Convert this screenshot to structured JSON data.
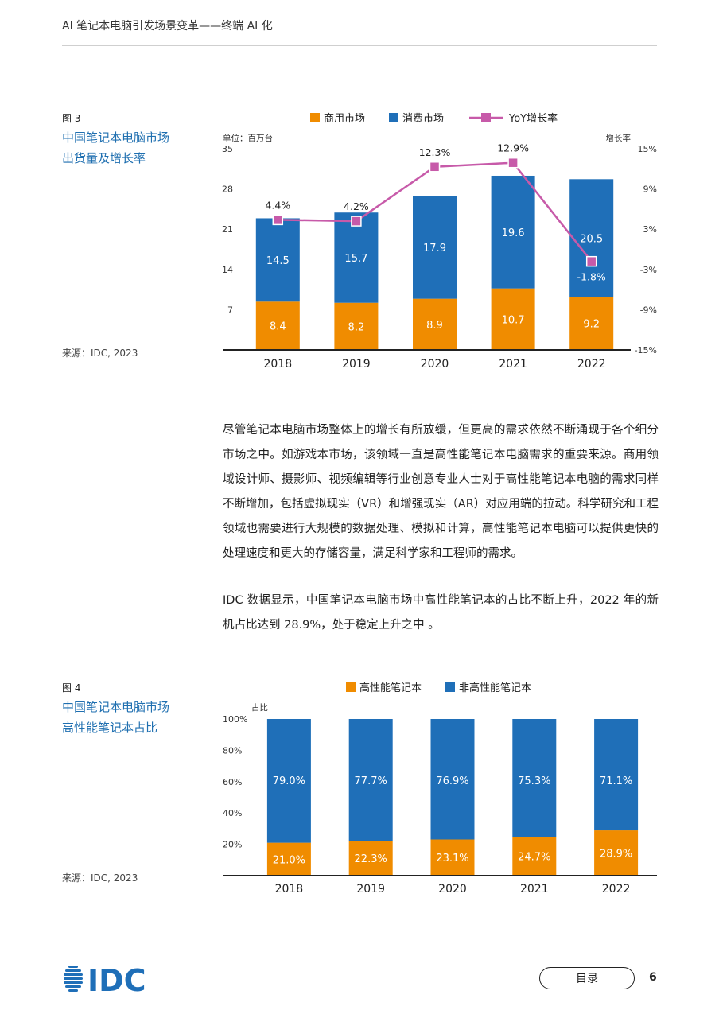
{
  "header": {
    "title": "AI 笔记本电脑引发场景变革——终端 AI 化"
  },
  "figure3": {
    "label": "图 3",
    "title_line1": "中国笔记本电脑市场",
    "title_line2": "出货量及增长率",
    "source": "来源：IDC, 2023",
    "unit_left": "单位：百万台",
    "unit_right": "增长率"
  },
  "figure4": {
    "label": "图 4",
    "title_line1": "中国笔记本电脑市场",
    "title_line2": "高性能笔记本占比",
    "source": "来源：IDC, 2023",
    "unit_left": "占比"
  },
  "body": {
    "paragraph1": "尽管笔记本电脑市场整体上的增长有所放缓，但更高的需求依然不断涌现于各个细分市场之中。如游戏本市场，该领域一直是高性能笔记本电脑需求的重要来源。商用领域设计师、摄影师、视频编辑等行业创意专业人士对于高性能笔记本电脑的需求同样不断增加，包括虚拟现实（VR）和增强现实（AR）对应用端的拉动。科学研究和工程领域也需要进行大规模的数据处理、模拟和计算，高性能笔记本电脑可以提供更快的处理速度和更大的存储容量，满足科学家和工程师的需求。",
    "paragraph2": "IDC 数据显示，中国笔记本电脑市场中高性能笔记本的占比不断上升，2022 年的新机占比达到 28.9%，处于稳定上升之中 。"
  },
  "footer": {
    "logo_text": "IDC",
    "toc_label": "目录",
    "page_number": "6"
  },
  "colors": {
    "orange": "#f08c00",
    "blue": "#1f6fb8",
    "pink": "#c75aa9",
    "title_blue": "#1f6fb0"
  },
  "chart_data": [
    {
      "type": "bar",
      "stacked": true,
      "categories": [
        "2018",
        "2019",
        "2020",
        "2021",
        "2022"
      ],
      "series": [
        {
          "name": "商用市场",
          "values": [
            8.4,
            8.2,
            8.9,
            10.7,
            9.2
          ],
          "labels": [
            "8.4",
            "8.2",
            "8.9",
            "10.7",
            "9.2"
          ],
          "color": "#f08c00"
        },
        {
          "name": "消费市场",
          "values": [
            14.5,
            15.7,
            17.9,
            19.6,
            20.5
          ],
          "labels": [
            "14.5",
            "15.7",
            "17.9",
            "19.6",
            "20.5"
          ],
          "color": "#1f6fb8"
        }
      ],
      "line_series": {
        "name": "YoY增长率",
        "values": [
          4.4,
          4.2,
          12.3,
          12.9,
          -1.8
        ],
        "labels": [
          "4.4%",
          "4.2%",
          "12.3%",
          "12.9%",
          "-1.8%"
        ],
        "color": "#c75aa9"
      },
      "ylabel": "单位：百万台",
      "y2label": "增长率",
      "ylim": [
        0,
        35
      ],
      "yticks": [
        "7",
        "14",
        "21",
        "28",
        "35"
      ],
      "yticks_values": [
        7,
        14,
        21,
        28,
        35
      ],
      "y2lim": [
        -15,
        15
      ],
      "y2ticks": [
        "-15%",
        "-9%",
        "-3%",
        "3%",
        "9%",
        "15%"
      ],
      "y2ticks_values": [
        -15,
        -9,
        -3,
        3,
        9,
        15
      ],
      "legend": "top"
    },
    {
      "type": "bar",
      "stacked": true,
      "categories": [
        "2018",
        "2019",
        "2020",
        "2021",
        "2022"
      ],
      "series": [
        {
          "name": "高性能笔记本",
          "values": [
            21.0,
            22.3,
            23.1,
            24.7,
            28.9
          ],
          "labels": [
            "21.0%",
            "22.3%",
            "23.1%",
            "24.7%",
            "28.9%"
          ],
          "color": "#f08c00"
        },
        {
          "name": "非高性能笔记本",
          "values": [
            79.0,
            77.7,
            76.9,
            75.3,
            71.1
          ],
          "labels": [
            "79.0%",
            "77.7%",
            "76.9%",
            "75.3%",
            "71.1%"
          ],
          "color": "#1f6fb8"
        }
      ],
      "ylabel": "占比",
      "ylim": [
        0,
        100
      ],
      "yticks": [
        "20%",
        "40%",
        "60%",
        "80%",
        "100%"
      ],
      "yticks_values": [
        20,
        40,
        60,
        80,
        100
      ],
      "legend": "top"
    }
  ]
}
